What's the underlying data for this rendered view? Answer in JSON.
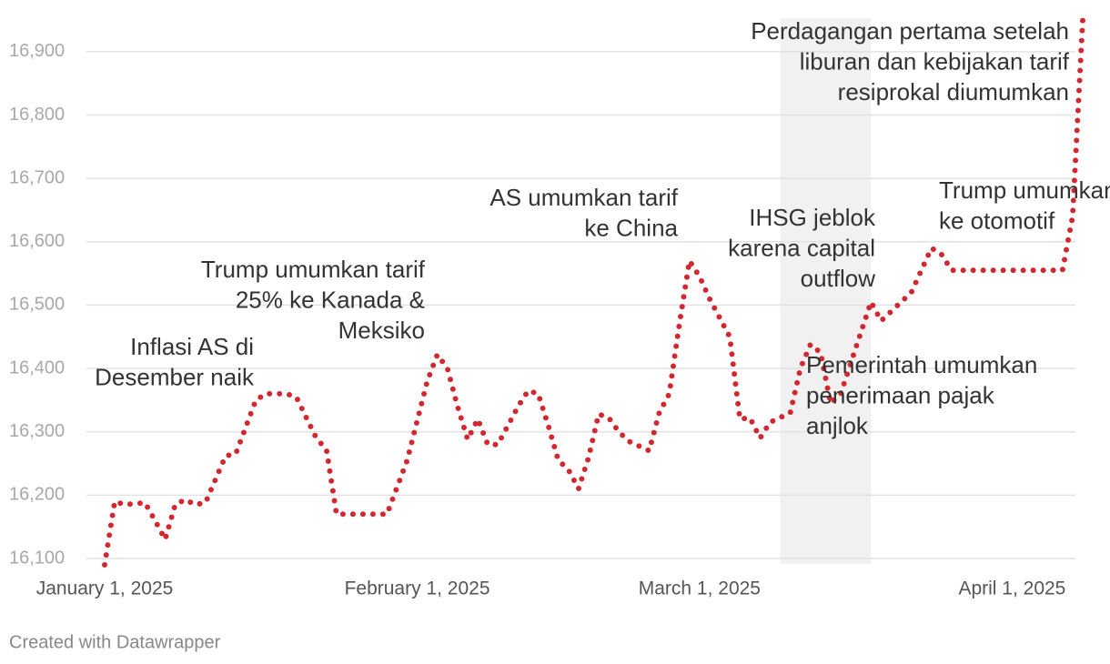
{
  "chart_data": {
    "type": "line",
    "x": [
      "2025-01-01",
      "2025-01-02",
      "2025-01-03",
      "2025-01-05",
      "2025-01-06",
      "2025-01-07",
      "2025-01-08",
      "2025-01-09",
      "2025-01-10",
      "2025-01-11",
      "2025-01-13",
      "2025-01-14",
      "2025-01-16",
      "2025-01-17",
      "2025-01-19",
      "2025-01-20",
      "2025-01-22",
      "2025-01-23",
      "2025-01-24",
      "2025-01-29",
      "2025-01-31",
      "2025-02-02",
      "2025-02-03",
      "2025-02-04",
      "2025-02-05",
      "2025-02-06",
      "2025-02-07",
      "2025-02-08",
      "2025-02-09",
      "2025-02-10",
      "2025-02-11",
      "2025-02-12",
      "2025-02-13",
      "2025-02-14",
      "2025-02-15",
      "2025-02-16",
      "2025-02-17",
      "2025-02-18",
      "2025-02-19",
      "2025-02-20",
      "2025-02-21",
      "2025-02-22",
      "2025-02-24",
      "2025-02-25",
      "2025-02-26",
      "2025-02-27",
      "2025-02-28",
      "2025-03-01",
      "2025-03-02",
      "2025-03-03",
      "2025-03-04",
      "2025-03-05",
      "2025-03-06",
      "2025-03-07",
      "2025-03-08",
      "2025-03-10",
      "2025-03-11",
      "2025-03-12",
      "2025-03-13",
      "2025-03-14",
      "2025-03-15",
      "2025-03-18",
      "2025-03-19",
      "2025-03-22",
      "2025-03-24",
      "2025-03-25",
      "2025-03-26",
      "2025-04-06",
      "2025-04-07",
      "2025-04-08"
    ],
    "values": [
      16090,
      16190,
      16185,
      16188,
      16160,
      16130,
      16185,
      16193,
      16185,
      16188,
      16262,
      16265,
      16350,
      16360,
      16360,
      16355,
      16290,
      16272,
      16170,
      16170,
      16255,
      16380,
      16422,
      16400,
      16340,
      16288,
      16320,
      16280,
      16280,
      16310,
      16340,
      16365,
      16360,
      16310,
      16255,
      16240,
      16210,
      16260,
      16328,
      16322,
      16300,
      16285,
      16270,
      16330,
      16360,
      16470,
      16570,
      16545,
      16510,
      16480,
      16450,
      16320,
      16322,
      16290,
      16315,
      16330,
      16400,
      16438,
      16425,
      16345,
      16360,
      16505,
      16475,
      16520,
      16590,
      16580,
      16555,
      16555,
      16640,
      16950
    ],
    "color": "#d3272f",
    "xlim": [
      "2025-01-01",
      "2025-04-08"
    ],
    "xticks": [
      {
        "value": "2025-01-01",
        "label": "January 1, 2025"
      },
      {
        "value": "2025-02-01",
        "label": "February 1, 2025"
      },
      {
        "value": "2025-03-01",
        "label": "March 1, 2025"
      },
      {
        "value": "2025-04-01",
        "label": "April 1, 2025"
      }
    ],
    "ylim": [
      16090,
      16950
    ],
    "yticks": [
      {
        "value": 16100,
        "label": "16,100"
      },
      {
        "value": 16200,
        "label": "16,200"
      },
      {
        "value": 16300,
        "label": "16,300"
      },
      {
        "value": 16400,
        "label": "16,400"
      },
      {
        "value": 16500,
        "label": "16,500"
      },
      {
        "value": 16600,
        "label": "16,600"
      },
      {
        "value": 16700,
        "label": "16,700"
      },
      {
        "value": 16800,
        "label": "16,800"
      },
      {
        "value": 16900,
        "label": "16,900"
      }
    ],
    "grid": true,
    "highlight_range": [
      "2025-03-09",
      "2025-03-18"
    ],
    "annotations": [
      {
        "lines": [
          "Inflasi AS di",
          "Desember naik"
        ]
      },
      {
        "lines": [
          "Trump umumkan tarif",
          "25% ke Kanada &",
          "Meksiko"
        ]
      },
      {
        "lines": [
          "AS umumkan tarif",
          "ke China"
        ]
      },
      {
        "lines": [
          "IHSG jeblok",
          "karena capital",
          "outflow"
        ]
      },
      {
        "lines": [
          "Pemerintah umumkan",
          "penerimaan pajak",
          "anjlok"
        ]
      },
      {
        "lines": [
          "Trump umumkan tarif",
          "ke otomotif"
        ]
      },
      {
        "lines": [
          "Perdagangan pertama setelah",
          "liburan dan kebijakan tarif",
          "resiprokal diumumkan"
        ]
      }
    ],
    "footer": "Created with Datawrapper"
  }
}
